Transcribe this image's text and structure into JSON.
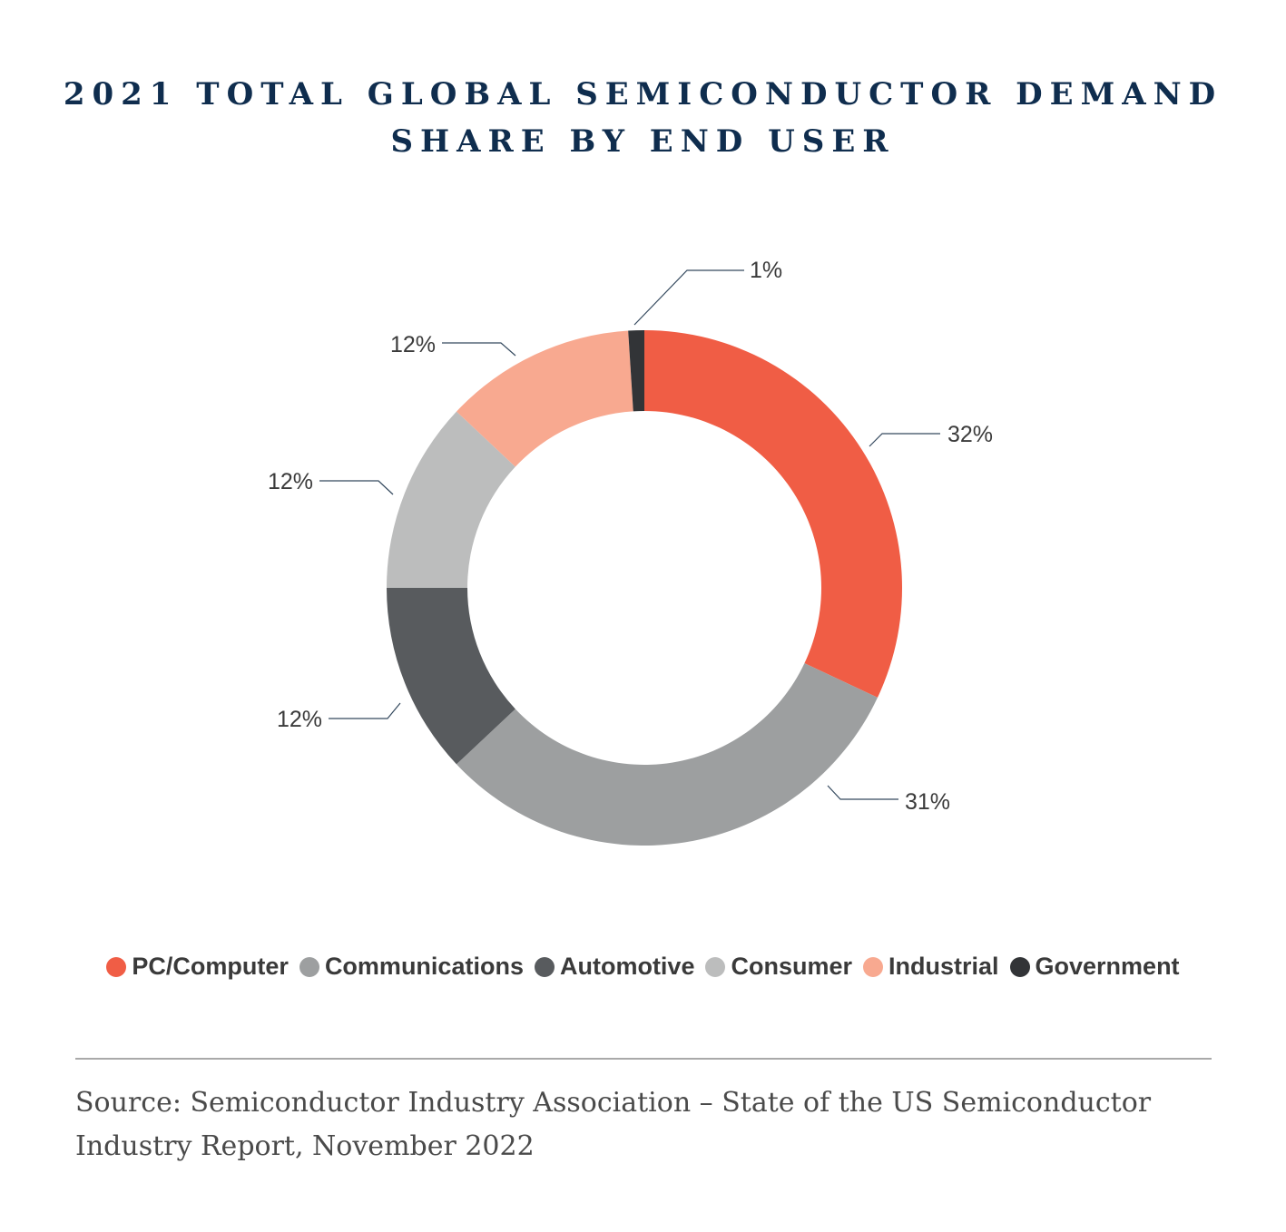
{
  "title_line1": "2021 TOTAL GLOBAL SEMICONDUCTOR DEMAND",
  "title_line2": "SHARE BY END USER",
  "chart_data": {
    "type": "pie",
    "donut": true,
    "categories": [
      "PC/Computer",
      "Communications",
      "Automotive",
      "Consumer",
      "Industrial",
      "Government"
    ],
    "values": [
      32,
      31,
      12,
      12,
      12,
      1
    ],
    "labels": [
      "32%",
      "31%",
      "12%",
      "12%",
      "12%",
      "1%"
    ],
    "colors": [
      "#f05d45",
      "#9d9fa0",
      "#585b5e",
      "#bcbdbd",
      "#f8a990",
      "#323437"
    ],
    "legend_position": "bottom"
  },
  "source_line1": "Source: Semiconductor Industry Association – State of the US Semiconductor",
  "source_line2": "Industry Report, November 2022"
}
